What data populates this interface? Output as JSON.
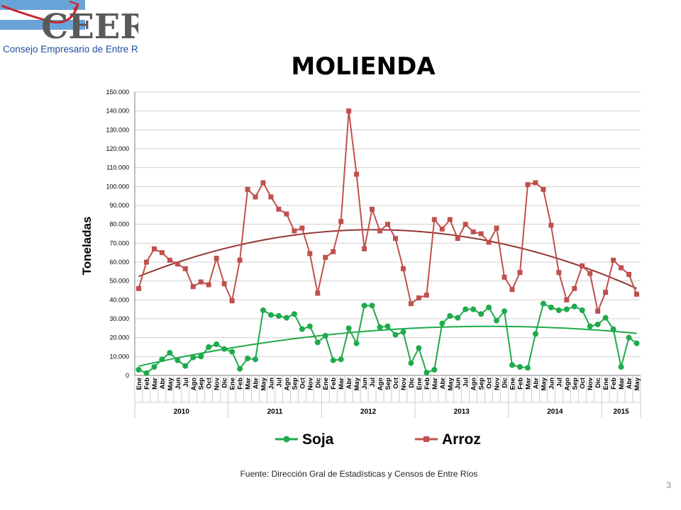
{
  "logo": {
    "name": "CEER",
    "subtitle": "Consejo Empresario de Entre Ríos",
    "colors": {
      "blue": "#1f4e9c",
      "light_blue": "#6aa3d8",
      "red": "#c8242b",
      "gray": "#5a5a5a"
    }
  },
  "slide": {
    "title": "MOLIENDA",
    "source": "Fuente: Dirección Gral de Estadísticas y Censos de Entre Ríos",
    "page_number": "3"
  },
  "chart_data": {
    "type": "line",
    "title": "",
    "ylabel": "Toneladas",
    "xlabel": "",
    "ylim": [
      0,
      150000
    ],
    "y_ticks": [
      "0",
      "10.000",
      "20.000",
      "30.000",
      "40.000",
      "50.000",
      "60.000",
      "70.000",
      "80.000",
      "90.000",
      "100.000",
      "110.000",
      "120.000",
      "130.000",
      "140.000",
      "150.000"
    ],
    "grid": true,
    "legend_position": "bottom",
    "years": [
      {
        "label": "2010",
        "months": 12
      },
      {
        "label": "2011",
        "months": 12
      },
      {
        "label": "2012",
        "months": 12
      },
      {
        "label": "2013",
        "months": 12
      },
      {
        "label": "2014",
        "months": 12
      },
      {
        "label": "2015",
        "months": 5
      }
    ],
    "categories": [
      "Ene",
      "Feb",
      "Mar",
      "Abr",
      "May",
      "Jun",
      "Jul",
      "Ago",
      "Sep",
      "Oct",
      "Nov",
      "Dic",
      "Ene",
      "Feb",
      "Mar",
      "Abr",
      "May",
      "Jun",
      "Jul",
      "Ago",
      "Sep",
      "Oct",
      "Nov",
      "Dic",
      "Ene",
      "Feb",
      "Mar",
      "Abr",
      "May",
      "Jun",
      "Jul",
      "Ago",
      "Sep",
      "Oct",
      "Nov",
      "Dic",
      "Ene",
      "Feb",
      "Mar",
      "Abr",
      "May",
      "Jun",
      "Jul",
      "Ago",
      "Sep",
      "Oct",
      "Nov",
      "Dic",
      "Ene",
      "Feb",
      "Mar",
      "Abr",
      "May",
      "Jun",
      "Jul",
      "Ago",
      "Sep",
      "Oct",
      "Nov",
      "Dic",
      "Ene",
      "Feb",
      "Mar",
      "Abr",
      "May"
    ],
    "series": [
      {
        "name": "Soja",
        "color": "#1faa4b",
        "marker": "circle",
        "trend_color": "#1faa4b",
        "values": [
          3000,
          1200,
          4500,
          8500,
          12000,
          8000,
          5000,
          9500,
          10000,
          15000,
          16500,
          14000,
          12500,
          3500,
          9000,
          8500,
          34500,
          32000,
          31500,
          30500,
          32500,
          24500,
          26000,
          17500,
          21000,
          8000,
          8500,
          25000,
          17000,
          37000,
          37000,
          25500,
          26000,
          21500,
          23000,
          6500,
          14500,
          1500,
          3000,
          27500,
          31500,
          30500,
          35000,
          35000,
          32500,
          36000,
          29000,
          34000,
          5500,
          4500,
          4000,
          22000,
          38000,
          36000,
          34500,
          35000,
          36500,
          34500,
          26000,
          27000,
          30500,
          24500,
          4500,
          20000,
          17000
        ]
      },
      {
        "name": "Arroz",
        "color": "#c0504d",
        "marker": "square",
        "trend_color": "#943634",
        "values": [
          46000,
          60000,
          67000,
          65000,
          61000,
          59000,
          56500,
          47000,
          49500,
          48000,
          62000,
          48500,
          39500,
          61000,
          98500,
          94500,
          102000,
          94500,
          88000,
          85500,
          76500,
          78000,
          64500,
          43500,
          62500,
          65500,
          81500,
          140000,
          106500,
          67000,
          88000,
          76500,
          80000,
          72500,
          56500,
          38000,
          41000,
          42500,
          82500,
          77500,
          82500,
          72500,
          80000,
          76000,
          75000,
          70500,
          78000,
          52000,
          45500,
          54500,
          101000,
          102000,
          98500,
          79500,
          54500,
          40000,
          46000,
          58000,
          54000,
          34000,
          44000,
          61000,
          57000,
          53500,
          43000
        ]
      }
    ]
  }
}
